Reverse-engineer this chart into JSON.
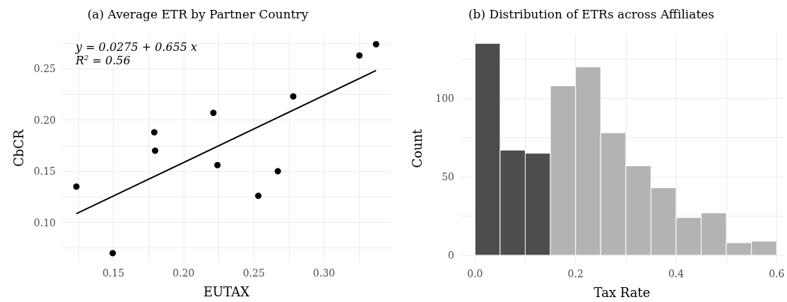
{
  "chart_data": [
    {
      "type": "scatter",
      "title": "(a) Average ETR by Partner Country",
      "xlabel": "EUTAX",
      "ylabel": "CbCR",
      "annotations": [
        "y = 0.0275 + 0.655 x",
        "R$^{2}$ = 0.56"
      ],
      "series": [
        {
          "type": "scatter",
          "color": "#000000",
          "marker": "circle",
          "x": [
            0.1236,
            0.1495,
            0.1791,
            0.1797,
            0.2212,
            0.2241,
            0.2532,
            0.2671,
            0.2781,
            0.3252,
            0.3371
          ],
          "values": [
            0.135,
            0.07,
            0.188,
            0.17,
            0.207,
            0.156,
            0.126,
            0.15,
            0.223,
            0.263,
            0.274
          ]
        },
        {
          "type": "line",
          "color": "#000000",
          "marker": "none",
          "x": [
            0.1236,
            0.3371
          ],
          "values": [
            0.1085,
            0.2483
          ]
        }
      ],
      "xlim": [
        0.113,
        0.348
      ],
      "ylim": [
        0.061,
        0.284
      ],
      "xticks": [
        {
          "value": 0.125,
          "label": null
        },
        0.15,
        {
          "value": 0.175,
          "label": null
        },
        {
          "value": 0.2,
          "label": "0.20"
        },
        {
          "value": 0.225,
          "label": null
        },
        0.25,
        {
          "value": 0.275,
          "label": null
        },
        {
          "value": 0.3,
          "label": "0.30"
        },
        {
          "value": 0.325,
          "label": null
        }
      ],
      "yticks": [
        {
          "value": 0.075,
          "label": null
        },
        {
          "value": 0.1,
          "label": "0.10"
        },
        {
          "value": 0.125,
          "label": null
        },
        0.15,
        {
          "value": 0.175,
          "label": null
        },
        {
          "value": 0.2,
          "label": "0.20"
        },
        {
          "value": 0.225,
          "label": null
        },
        0.25,
        {
          "value": 0.275,
          "label": null
        }
      ],
      "grid": true
    },
    {
      "type": "histogram",
      "title": "(b) Distribution of ETRs across Affiliates",
      "xlabel": "Tax Rate",
      "ylabel": "Count",
      "bins": [
        0,
        0.05,
        0.1,
        0.15,
        0.2,
        0.25,
        0.3,
        0.35,
        0.4,
        0.45,
        0.5,
        0.55,
        0.6
      ],
      "values": [
        135,
        67,
        65,
        108,
        120,
        78,
        57,
        43,
        24,
        27,
        8,
        9
      ],
      "colors": [
        "#4d4d4d",
        "#4d4d4d",
        "#4d4d4d",
        "#b3b3b3",
        "#b3b3b3",
        "#b3b3b3",
        "#b3b3b3",
        "#b3b3b3",
        "#b3b3b3",
        "#b3b3b3",
        "#b3b3b3",
        "#b3b3b3"
      ],
      "xlim": [
        -0.03,
        0.615
      ],
      "ylim": [
        -5,
        141
      ],
      "xticks": [
        {
          "value": 0,
          "label": "0.0"
        },
        {
          "value": 0.1,
          "label": null
        },
        0.2,
        {
          "value": 0.3,
          "label": null
        },
        0.4,
        {
          "value": 0.5,
          "label": null
        },
        0.6
      ],
      "yticks": [
        0,
        {
          "value": 25,
          "label": null
        },
        50,
        {
          "value": 75,
          "label": null
        },
        100,
        {
          "value": 125,
          "label": null
        }
      ],
      "grid": true
    }
  ]
}
